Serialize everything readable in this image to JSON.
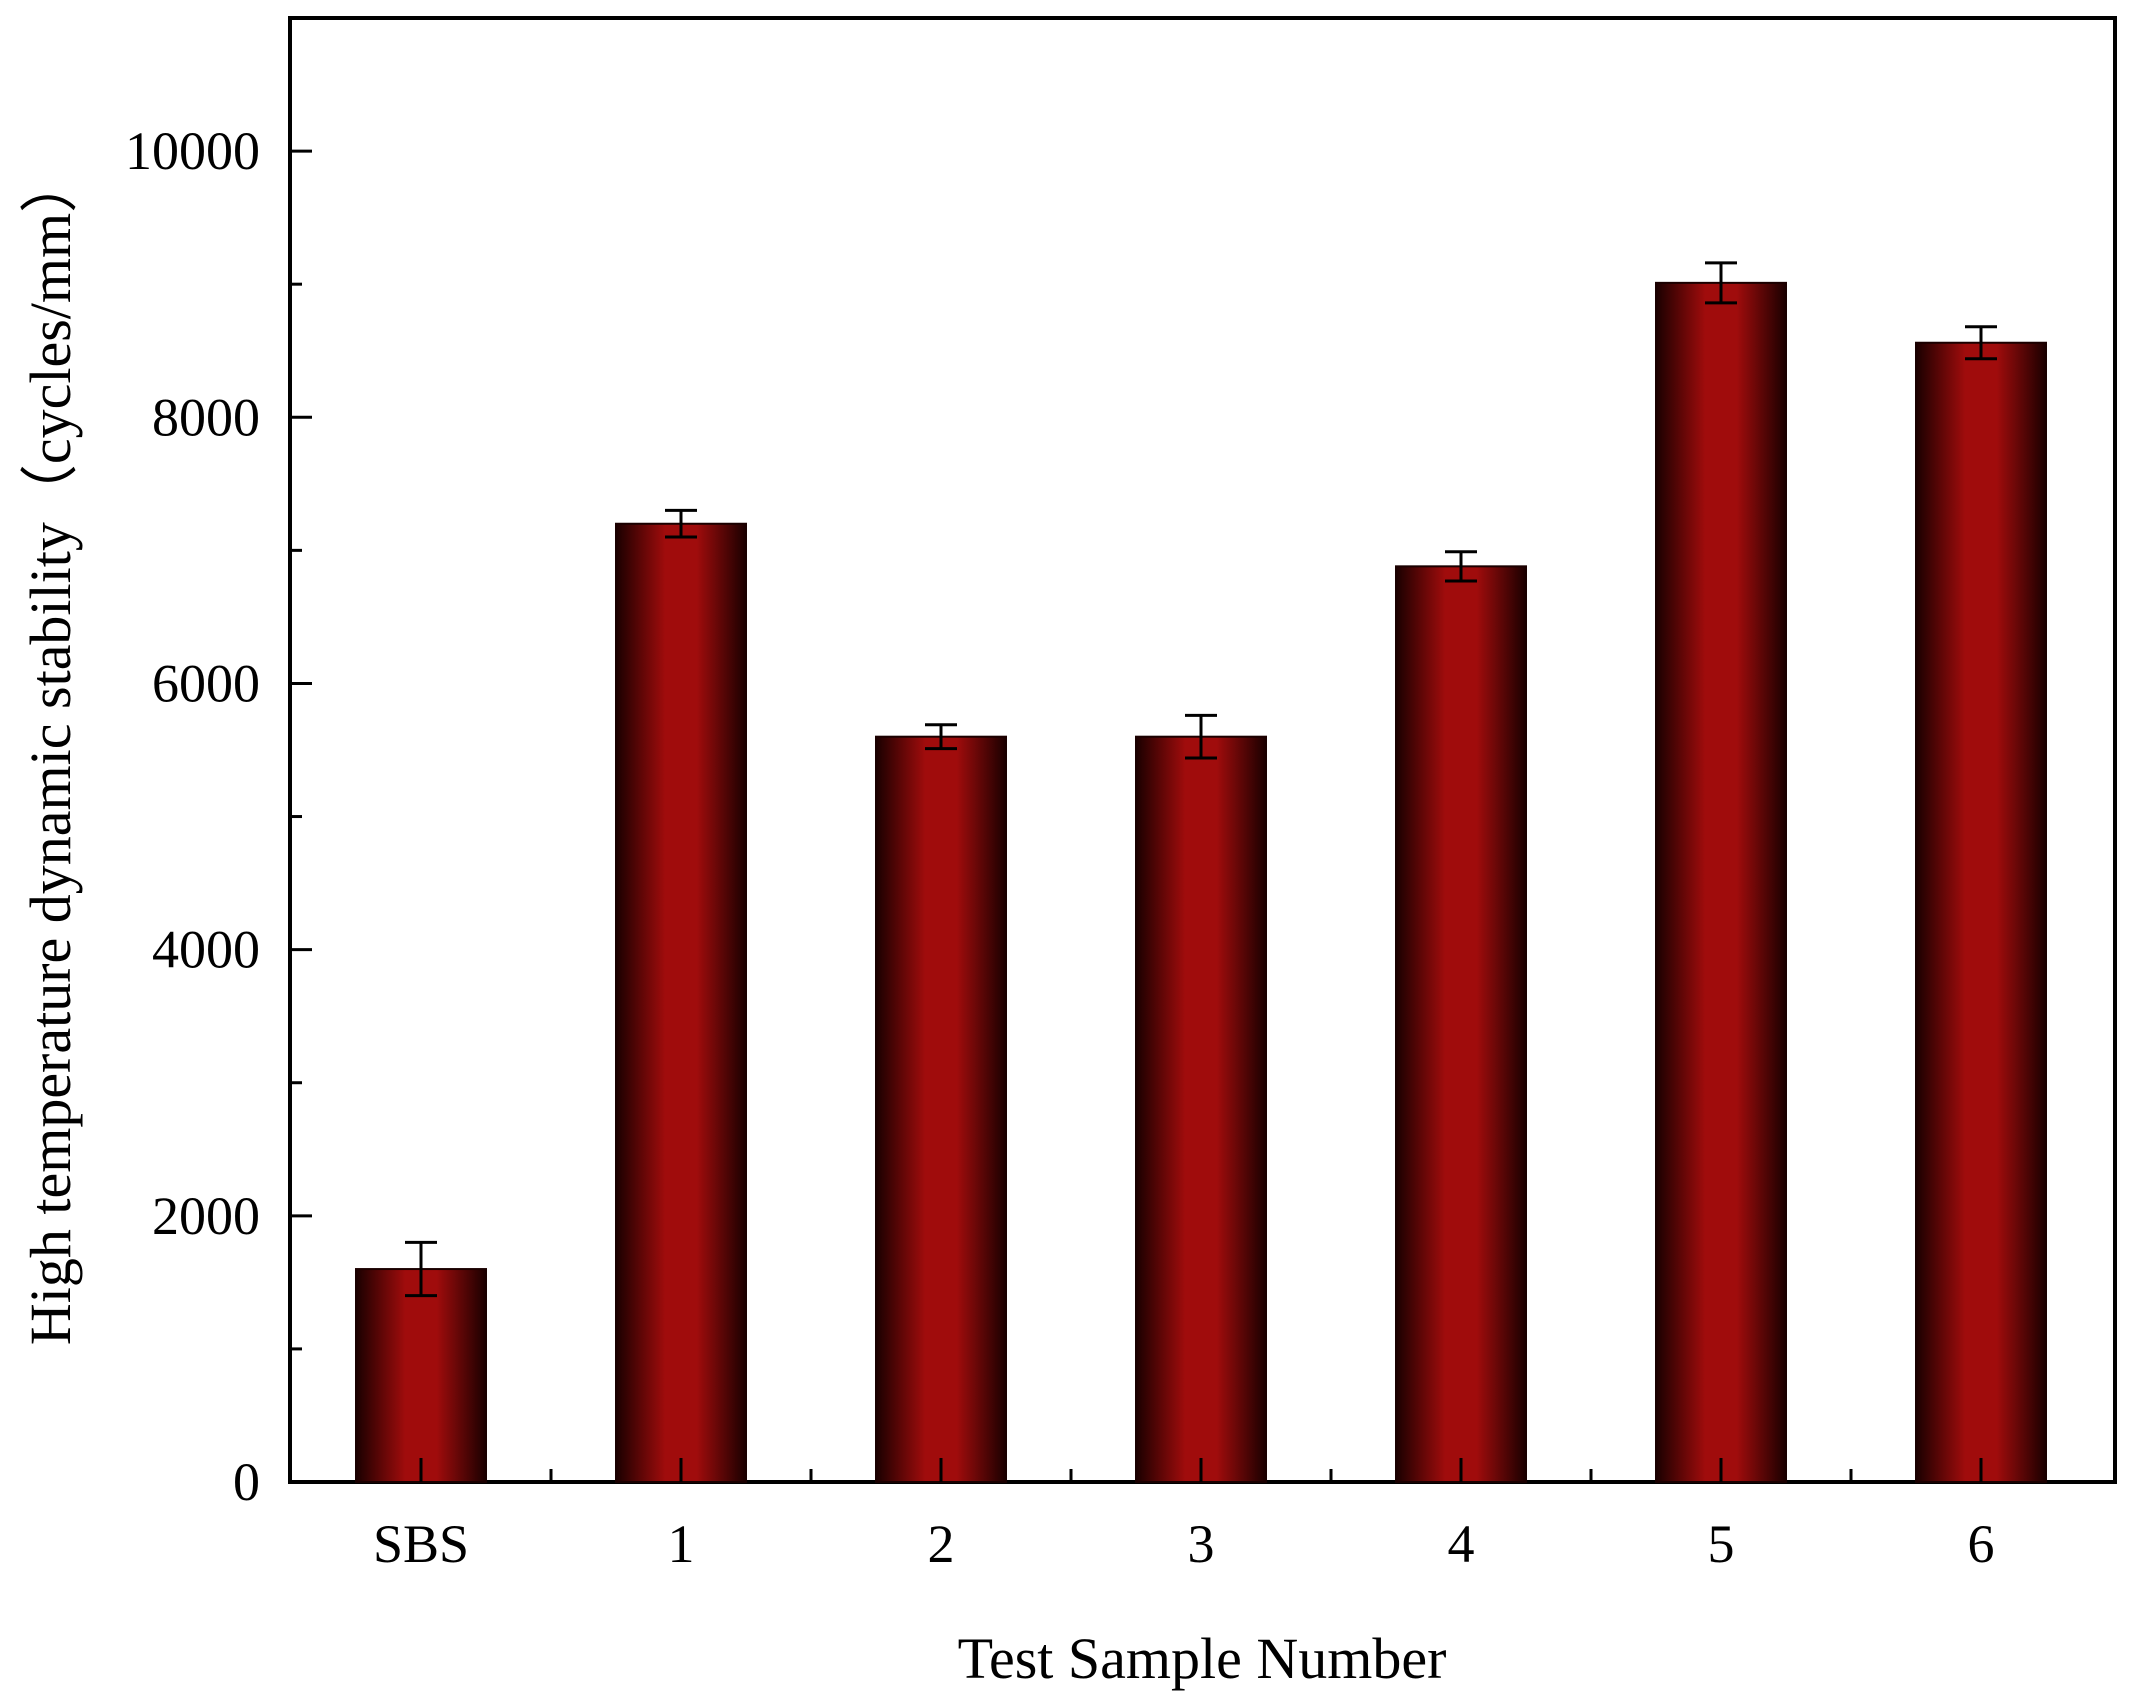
{
  "chart_data": {
    "type": "bar",
    "title": "",
    "xlabel": "Test Sample Number",
    "ylabel": "High temperature dynamic stability（cycles/mm）",
    "categories": [
      "SBS",
      "1",
      "2",
      "3",
      "4",
      "5",
      "6"
    ],
    "values": [
      1600,
      7200,
      5600,
      5600,
      6880,
      9010,
      8560
    ],
    "errors": [
      200,
      100,
      90,
      160,
      110,
      150,
      120
    ],
    "ylim": [
      0,
      11000
    ],
    "yticks": [
      0,
      2000,
      4000,
      6000,
      8000,
      10000
    ],
    "grid": false,
    "bar_color": "#a00c0c",
    "bar_edge_color": "#1a0000"
  }
}
